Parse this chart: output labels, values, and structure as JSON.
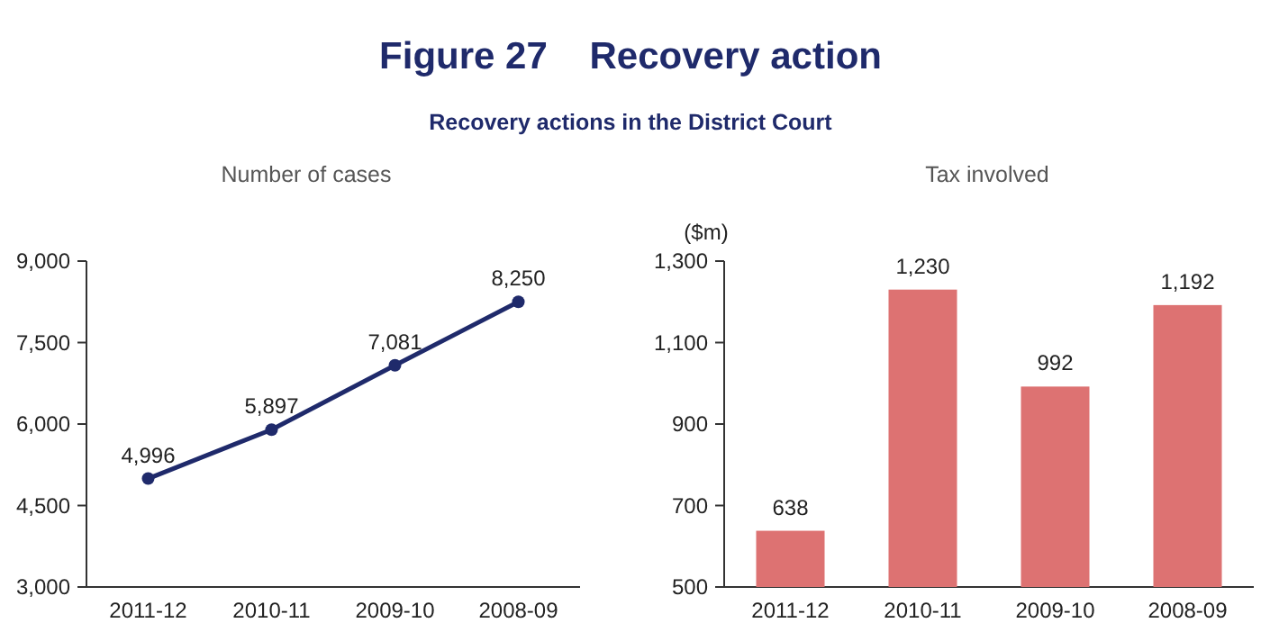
{
  "chart_data": [
    {
      "type": "line",
      "title": "Figure 27    Recovery action",
      "subtitle": "Recovery actions in the District Court",
      "ylabel": "Number of cases",
      "categories": [
        "2011-12",
        "2010-11",
        "2009-10",
        "2008-09"
      ],
      "series": [
        {
          "color": "#1f2a6b",
          "values": [
            4996,
            5897,
            7081,
            8250
          ]
        }
      ],
      "ylim": [
        3000,
        9000
      ],
      "yticks": [
        {
          "value": 3000,
          "label": "3,000"
        },
        {
          "value": 4500,
          "label": "4,500"
        },
        {
          "value": 6000,
          "label": "6,000"
        },
        {
          "value": 7500,
          "label": "7,500"
        },
        {
          "value": 9000,
          "label": "9,000"
        }
      ],
      "value_labels": [
        "4,996",
        "5,897",
        "7,081",
        "8,250"
      ],
      "marker": "circle",
      "line_style": "solid"
    },
    {
      "type": "bar",
      "title": "Tax involved",
      "ylabel": "($m)",
      "categories": [
        "2011-12",
        "2010-11",
        "2009-10",
        "2008-09"
      ],
      "series": [
        {
          "color": "#dd7272",
          "values": [
            638,
            1230,
            992,
            1192
          ]
        }
      ],
      "ylim": [
        500,
        1300
      ],
      "yticks": [
        500,
        700,
        900,
        {
          "value": 1100,
          "label": "1,100"
        },
        {
          "value": 1300,
          "label": "1,300"
        }
      ],
      "value_labels": [
        "638",
        "1,230",
        "992",
        "1,192"
      ]
    }
  ]
}
